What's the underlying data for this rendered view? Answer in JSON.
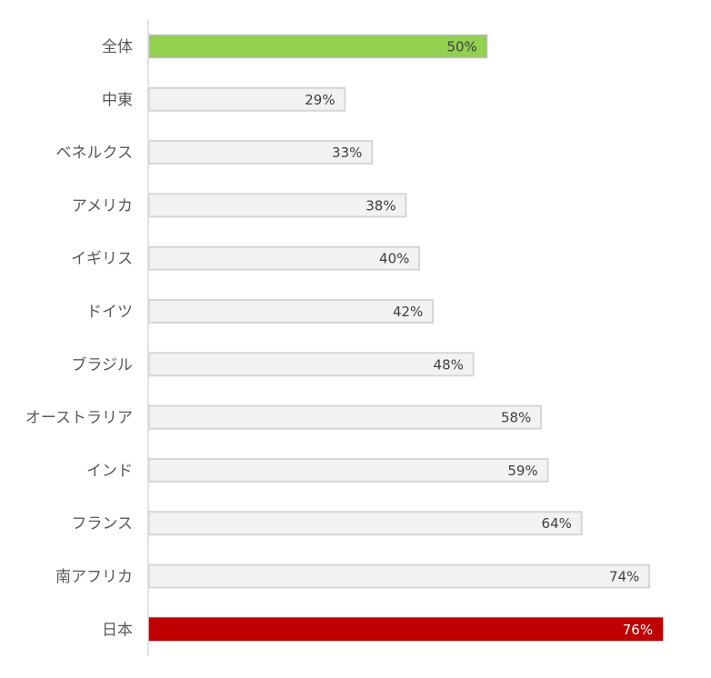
{
  "chart_data": {
    "type": "bar",
    "orientation": "horizontal",
    "title": "",
    "xlabel": "",
    "ylabel": "",
    "xlim": [
      0,
      76
    ],
    "grid": false,
    "legend": "none",
    "categories": [
      "全体",
      "中東",
      "ベネルクス",
      "アメリカ",
      "イギリス",
      "ドイツ",
      "ブラジル",
      "オーストラリア",
      "インド",
      "フランス",
      "南アフリカ",
      "日本"
    ],
    "values": [
      50,
      29,
      33,
      38,
      40,
      42,
      48,
      58,
      59,
      64,
      74,
      76
    ],
    "value_labels": [
      "50%",
      "29%",
      "33%",
      "38%",
      "40%",
      "42%",
      "48%",
      "58%",
      "59%",
      "64%",
      "74%",
      "76%"
    ],
    "highlight": {
      "全体": "#92d050",
      "日本": "#c00000"
    },
    "colors": {
      "default_fill": "#f2f2f2",
      "default_stroke": "#d6d6d6",
      "axis_line": "#d9d9d9",
      "category_text": "#595959",
      "value_text_default": "#404040",
      "value_text_on_dark": "#ffffff"
    }
  }
}
